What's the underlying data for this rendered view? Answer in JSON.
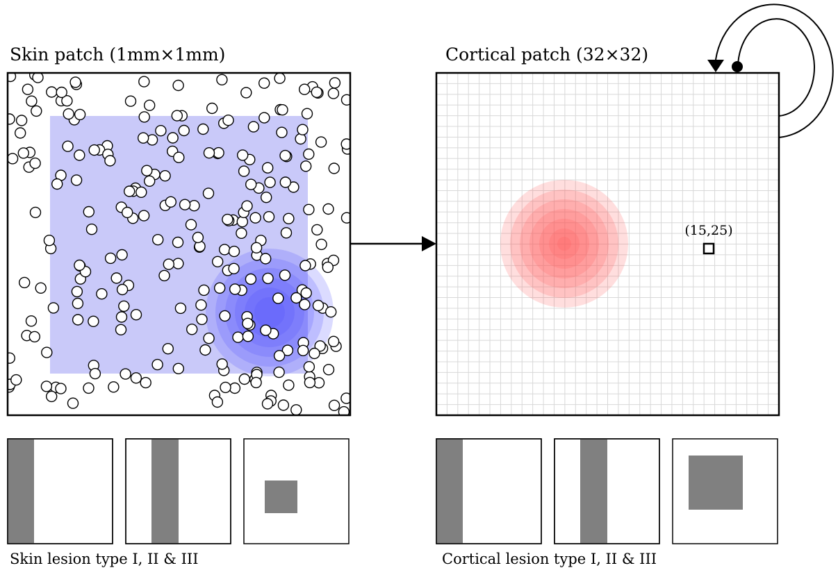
{
  "skin_panel": {
    "title": "Skin patch (1mm×1mm)",
    "receptor_count": 260,
    "field_color": "#c9c9f9",
    "receptor_fill": "#ffffff",
    "receptor_stroke": "#000000",
    "stimulus_color": "#4a4aff"
  },
  "cortical_panel": {
    "title": "Cortical patch (32×32)",
    "grid_size": 32,
    "grid_color": "#d8d8d8",
    "activity_color": "#ff5a5a",
    "unit_label": "(15,25)"
  },
  "skin_lesions": {
    "caption": "Skin lesion type I, II & III",
    "types": [
      "I",
      "II",
      "III"
    ],
    "lesion_color": "#808080"
  },
  "cortical_lesions": {
    "caption": "Cortical lesion type I, II & III",
    "types": [
      "I",
      "II",
      "III"
    ],
    "lesion_color": "#808080"
  }
}
